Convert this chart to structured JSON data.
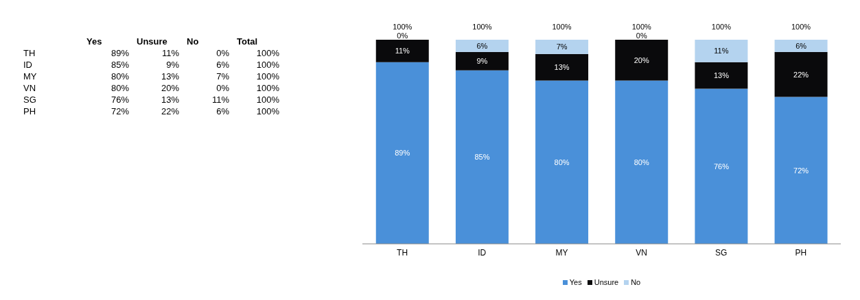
{
  "chart_data": {
    "type": "bar",
    "stacked": true,
    "categories": [
      "TH",
      "ID",
      "MY",
      "VN",
      "SG",
      "PH"
    ],
    "series": [
      {
        "name": "Yes",
        "color": "#4a90d9",
        "values": [
          89,
          85,
          80,
          80,
          76,
          72
        ],
        "value_labels": [
          "89%",
          "85%",
          "80%",
          "80%",
          "76%",
          "72%"
        ]
      },
      {
        "name": "Unsure",
        "color": "#0a0a0c",
        "values": [
          11,
          9,
          13,
          20,
          13,
          22
        ],
        "value_labels": [
          "11%",
          "9%",
          "13%",
          "20%",
          "13%",
          "22%"
        ]
      },
      {
        "name": "No",
        "color": "#b4d3ef",
        "values": [
          0,
          6,
          7,
          0,
          11,
          6
        ],
        "value_labels": [
          "0%",
          "6%",
          "7%",
          "0%",
          "11%",
          "6%"
        ]
      }
    ],
    "totals": [
      "100%",
      "100%",
      "100%",
      "100%",
      "100%",
      "100%"
    ],
    "annotations": [
      "Total"
    ],
    "legend": "bottom"
  }
}
